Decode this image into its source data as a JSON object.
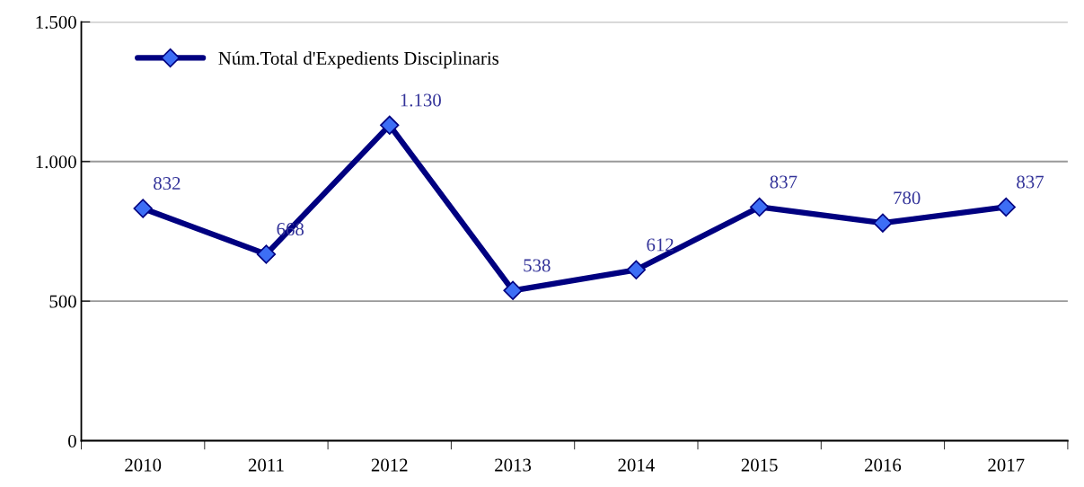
{
  "chart_data": {
    "type": "line",
    "categories": [
      "2010",
      "2011",
      "2012",
      "2013",
      "2014",
      "2015",
      "2016",
      "2017"
    ],
    "series": [
      {
        "name": "Núm.Total d'Expedients Disciplinaris",
        "color": "#000080",
        "values": [
          832,
          668,
          1130,
          538,
          612,
          837,
          780,
          837
        ],
        "value_labels": [
          "832",
          "668",
          "1.130",
          "538",
          "612",
          "837",
          "780",
          "837"
        ]
      }
    ],
    "ylim": [
      0,
      1500
    ],
    "yticks": [
      0,
      {
        "value": 500,
        "label": "500"
      },
      {
        "value": 1000,
        "label": "1.000"
      },
      {
        "value": 1500,
        "label": "1.500"
      }
    ],
    "grid": "y",
    "legend": "top left",
    "marker": "diamond",
    "line_style": "solid"
  }
}
